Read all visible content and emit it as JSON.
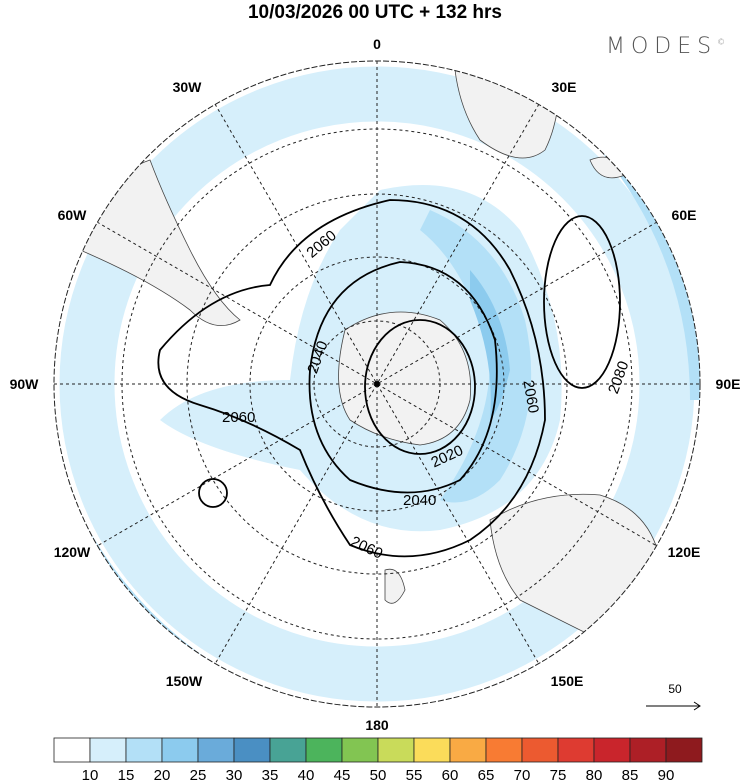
{
  "title": "10/03/2026  00 UTC  + 132 hrs",
  "logo": {
    "text": "MODES",
    "mark": "©"
  },
  "longitude_labels": [
    "0",
    "30E",
    "60E",
    "90E",
    "120E",
    "150E",
    "180",
    "150W",
    "120W",
    "90W",
    "60W",
    "30W"
  ],
  "contour_labels": [
    "2060",
    "2040",
    "2020",
    "2060",
    "2080",
    "2060",
    "2040",
    "2060"
  ],
  "vector_reference": {
    "label": "50",
    "icon": "arrow-right-icon"
  },
  "colorbar": {
    "colors": [
      "#ffffff",
      "#d6effb",
      "#b3e0f7",
      "#8ccbee",
      "#6aabda",
      "#4a8fc3",
      "#48a395",
      "#4cb45c",
      "#82c552",
      "#c9db5a",
      "#fbdc5a",
      "#f9aa44",
      "#f87b33",
      "#ec5a30",
      "#de3b31",
      "#c9252c",
      "#ad1f26",
      "#8e1a1e"
    ],
    "labels": [
      "10",
      "15",
      "20",
      "25",
      "30",
      "35",
      "40",
      "45",
      "50",
      "55",
      "60",
      "65",
      "70",
      "75",
      "80",
      "85",
      "90"
    ]
  }
}
